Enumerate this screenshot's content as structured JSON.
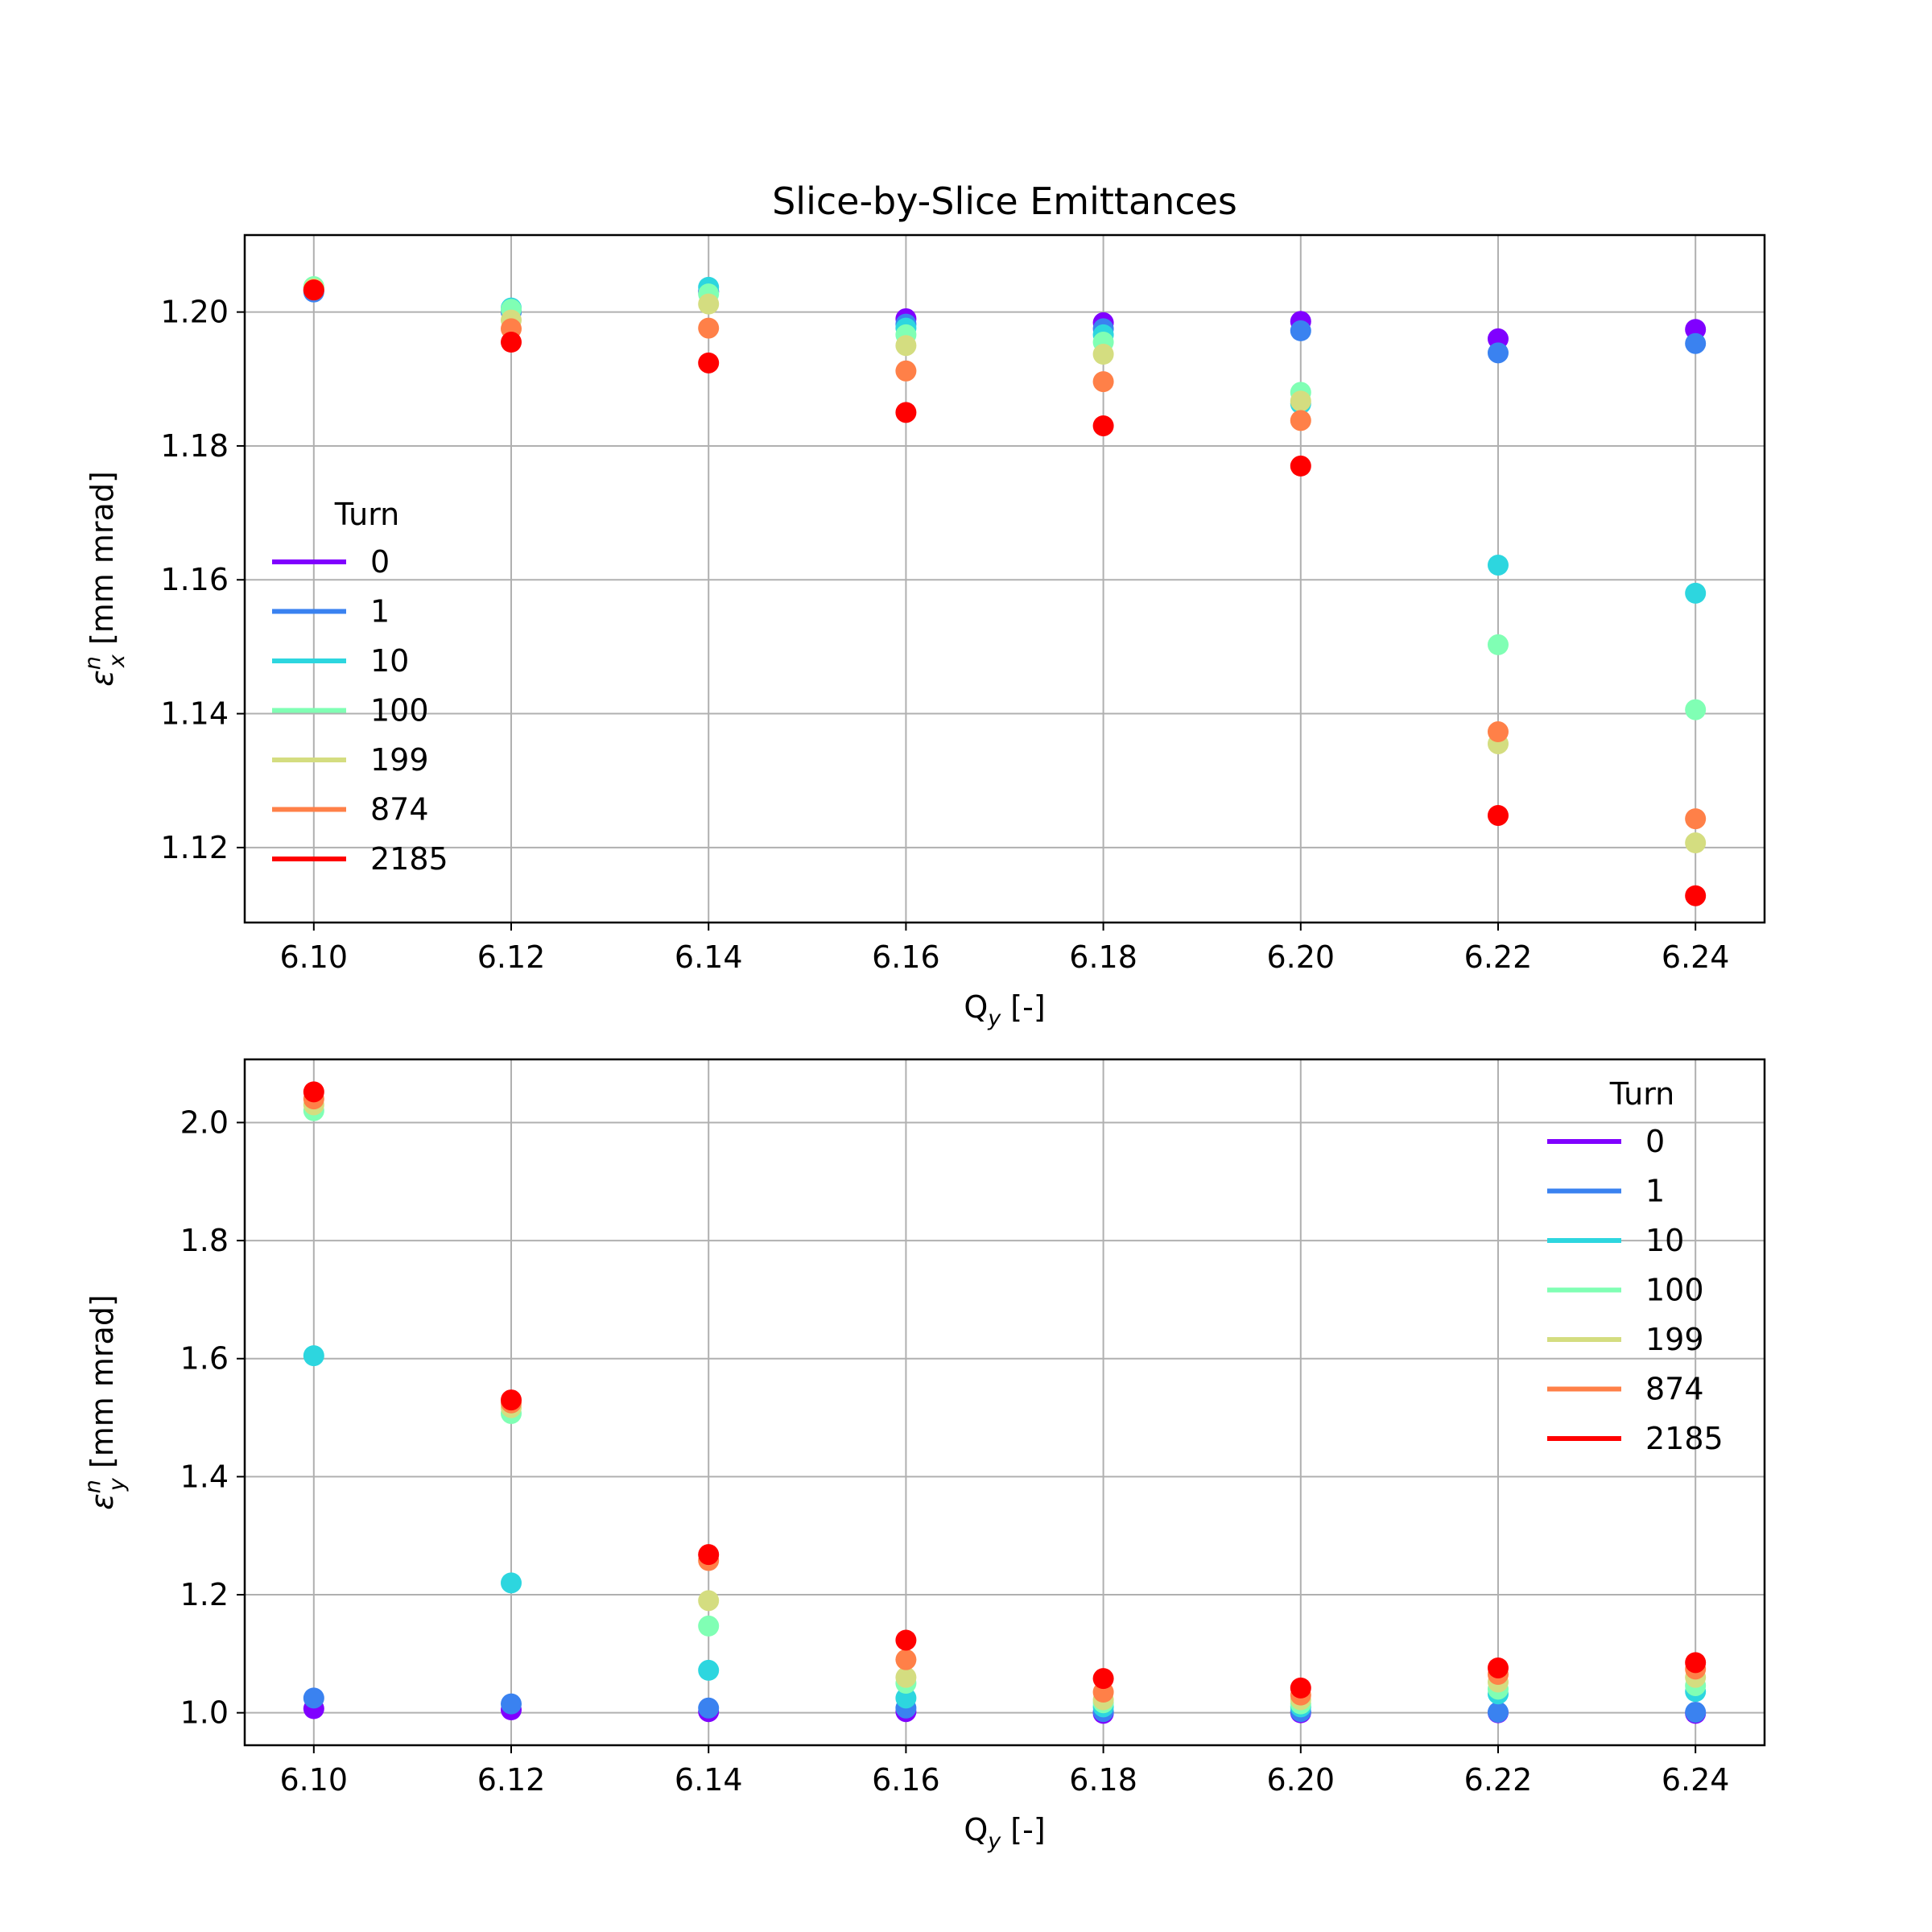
{
  "figure_title": "Slice-by-Slice Emittances",
  "colors": {
    "grid": "#b0b0b0",
    "axes": "#000000"
  },
  "chart_data": [
    {
      "type": "scatter",
      "title": "Slice-by-Slice Emittances",
      "xlabel": "Q",
      "xlabel_sub": "y",
      "xlabel_suffix": " [-]",
      "ylabel": "ε",
      "ylabel_sup": "n",
      "ylabel_sub": "x",
      "ylabel_suffix": " [mm mrad]",
      "xlim": [
        6.093,
        6.247
      ],
      "ylim": [
        1.1088,
        1.2115
      ],
      "x_ticks": [
        6.1,
        6.12,
        6.14,
        6.16,
        6.18,
        6.2,
        6.22,
        6.24
      ],
      "x_tick_labels": [
        "6.10",
        "6.12",
        "6.14",
        "6.16",
        "6.18",
        "6.20",
        "6.22",
        "6.24"
      ],
      "y_ticks": [
        1.12,
        1.14,
        1.16,
        1.18,
        1.2
      ],
      "y_tick_labels": [
        "1.12",
        "1.14",
        "1.16",
        "1.18",
        "1.20"
      ],
      "grid": true,
      "legend": {
        "title": "Turn",
        "placement": "center-left"
      },
      "x": [
        6.1,
        6.12,
        6.14,
        6.16,
        6.18,
        6.2,
        6.22,
        6.24
      ],
      "series": [
        {
          "name": "0",
          "color": "#8000ff",
          "values": [
            1.2032,
            1.2001,
            1.2031,
            1.199,
            1.1984,
            1.1986,
            1.196,
            1.1974
          ]
        },
        {
          "name": "1",
          "color": "#3a82f0",
          "values": [
            1.203,
            1.2,
            1.203,
            1.1982,
            1.1975,
            1.1972,
            1.1939,
            1.1953
          ]
        },
        {
          "name": "10",
          "color": "#2dd6df",
          "values": [
            1.2036,
            1.2006,
            1.2037,
            1.1976,
            1.1966,
            1.1863,
            1.1622,
            1.158
          ]
        },
        {
          "name": "100",
          "color": "#80ffb4",
          "values": [
            1.2038,
            1.2004,
            1.2027,
            1.1966,
            1.1955,
            1.188,
            1.1503,
            1.1406
          ]
        },
        {
          "name": "199",
          "color": "#d4dd80",
          "values": [
            1.2035,
            1.1988,
            1.2012,
            1.195,
            1.1937,
            1.1867,
            1.1355,
            1.1207
          ]
        },
        {
          "name": "874",
          "color": "#ff8048",
          "values": [
            1.2033,
            1.1975,
            1.1976,
            1.1912,
            1.1896,
            1.1838,
            1.1373,
            1.1243
          ]
        },
        {
          "name": "2185",
          "color": "#ff0000",
          "values": [
            1.2033,
            1.1955,
            1.1924,
            1.185,
            1.183,
            1.177,
            1.1248,
            1.1128
          ]
        }
      ]
    },
    {
      "type": "scatter",
      "xlabel": "Q",
      "xlabel_sub": "y",
      "xlabel_suffix": " [-]",
      "ylabel": "ε",
      "ylabel_sup": "n",
      "ylabel_sub": "y",
      "ylabel_suffix": " [mm mrad]",
      "xlim": [
        6.093,
        6.247
      ],
      "ylim": [
        0.945,
        2.107
      ],
      "x_ticks": [
        6.1,
        6.12,
        6.14,
        6.16,
        6.18,
        6.2,
        6.22,
        6.24
      ],
      "x_tick_labels": [
        "6.10",
        "6.12",
        "6.14",
        "6.16",
        "6.18",
        "6.20",
        "6.22",
        "6.24"
      ],
      "y_ticks": [
        1.0,
        1.2,
        1.4,
        1.6,
        1.8,
        2.0
      ],
      "y_tick_labels": [
        "1.0",
        "1.2",
        "1.4",
        "1.6",
        "1.8",
        "2.0"
      ],
      "grid": true,
      "legend": {
        "title": "Turn",
        "placement": "top-right"
      },
      "x": [
        6.1,
        6.12,
        6.14,
        6.16,
        6.18,
        6.2,
        6.22,
        6.24
      ],
      "series": [
        {
          "name": "0",
          "color": "#8000ff",
          "values": [
            1.007,
            1.005,
            1.002,
            1.002,
            0.999,
            1.0,
            1.0,
            0.999
          ]
        },
        {
          "name": "1",
          "color": "#3a82f0",
          "values": [
            1.025,
            1.015,
            1.008,
            1.008,
            1.002,
            1.002,
            1.001,
            1.001
          ]
        },
        {
          "name": "10",
          "color": "#2dd6df",
          "values": [
            1.605,
            1.22,
            1.072,
            1.025,
            1.01,
            1.01,
            1.032,
            1.036
          ]
        },
        {
          "name": "100",
          "color": "#80ffb4",
          "values": [
            2.02,
            1.507,
            1.147,
            1.05,
            1.017,
            1.015,
            1.04,
            1.046
          ]
        },
        {
          "name": "199",
          "color": "#d4dd80",
          "values": [
            2.03,
            1.517,
            1.19,
            1.06,
            1.022,
            1.022,
            1.052,
            1.06
          ]
        },
        {
          "name": "874",
          "color": "#ff8048",
          "values": [
            2.04,
            1.525,
            1.258,
            1.09,
            1.035,
            1.03,
            1.065,
            1.074
          ]
        },
        {
          "name": "2185",
          "color": "#ff0000",
          "values": [
            2.052,
            1.53,
            1.268,
            1.123,
            1.058,
            1.042,
            1.076,
            1.085
          ]
        }
      ]
    }
  ]
}
